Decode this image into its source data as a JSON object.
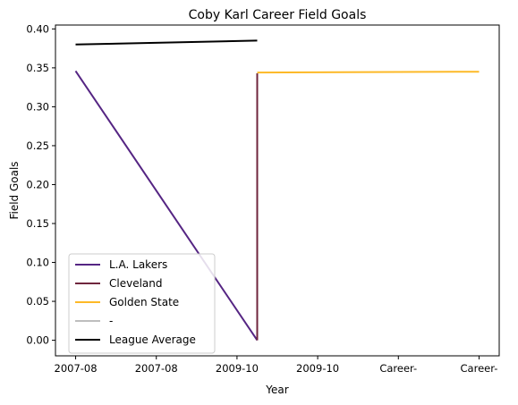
{
  "chart_data": {
    "type": "line",
    "title": "Coby Karl Career Field Goals",
    "xlabel": "Year",
    "ylabel": "Field Goals",
    "categories": [
      "2007-08",
      "2007-08",
      "2009-10",
      "2009-10",
      "Career-",
      "Career-"
    ],
    "ylim": [
      -0.02,
      0.405
    ],
    "yticks": [
      "0.00",
      "0.05",
      "0.10",
      "0.15",
      "0.20",
      "0.25",
      "0.30",
      "0.35",
      "0.40"
    ],
    "grid": false,
    "legend_position": "lower-left",
    "series": [
      {
        "name": "L.A. Lakers",
        "color": "#552583",
        "points": [
          [
            0,
            0.346
          ],
          [
            2.25,
            0.0
          ]
        ]
      },
      {
        "name": "Cleveland",
        "color": "#6F263D",
        "points": [
          [
            2.25,
            0.0
          ],
          [
            2.25,
            0.343
          ]
        ]
      },
      {
        "name": "Golden State",
        "color": "#FDB927",
        "points": [
          [
            2.25,
            0.344
          ],
          [
            5,
            0.345
          ]
        ]
      },
      {
        "name": "-",
        "color": "#BEBEBE",
        "points": []
      },
      {
        "name": "League Average",
        "color": "#000000",
        "points": [
          [
            0,
            0.38
          ],
          [
            2.25,
            0.385
          ]
        ]
      }
    ]
  }
}
